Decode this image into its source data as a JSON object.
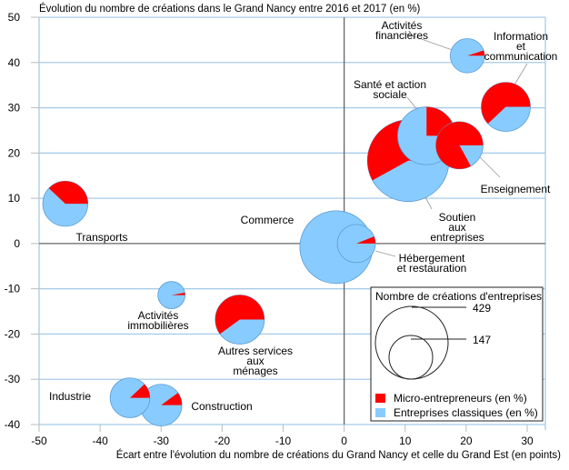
{
  "chart_data": {
    "type": "scatter",
    "subtype": "bubble-pie",
    "title": "Évolution du nombre de créations dans le Grand Nancy entre 2016 et 2017 (en %)",
    "xlabel": "Écart entre l'évolution du nombre de créations du Grand Nancy et celle du Grand Est (en points)",
    "ylabel": "",
    "xlim": [
      -50,
      33
    ],
    "ylim": [
      -40,
      50
    ],
    "x_ticks": [
      -50,
      -40,
      -30,
      -20,
      -10,
      0,
      10,
      20,
      30
    ],
    "y_ticks": [
      50,
      40,
      30,
      20,
      10,
      0,
      -10,
      -20,
      -30,
      -40
    ],
    "grid": "horizontal",
    "colors": {
      "micro": "#ff0000",
      "classic": "#88ccff",
      "grid": "#a8cce8",
      "axis_zero": "#666666"
    },
    "legend": {
      "title": "Nombre de créations d'entreprises",
      "size_values": [
        429,
        147
      ],
      "entries": [
        {
          "label": "Micro-entrepreneurs (en %)",
          "color_key": "micro"
        },
        {
          "label": "Entreprises classiques (en %)",
          "color_key": "classic"
        }
      ],
      "placement": "bottom-right"
    },
    "series": [
      {
        "name": "Activités financières",
        "label_lines": [
          "Activités",
          "financières"
        ],
        "x": 20.2,
        "y": 41.5,
        "count": 95,
        "micro_pct": 5
      },
      {
        "name": "Information et communication",
        "label_lines": [
          "Information",
          "et",
          "communication"
        ],
        "x": 26.5,
        "y": 30.2,
        "count": 195,
        "micro_pct": 62
      },
      {
        "name": "Santé et action sociale",
        "label_lines": [
          "Santé et action",
          "sociale"
        ],
        "x": 13.5,
        "y": 23.8,
        "count": 270,
        "micro_pct": 25
      },
      {
        "name": "Enseignement",
        "label_lines": [
          "Enseignement"
        ],
        "x": 18.9,
        "y": 21.7,
        "count": 180,
        "micro_pct": 83
      },
      {
        "name": "Soutien aux entreprises",
        "label_lines": [
          "Soutien",
          "aux",
          "entreprises"
        ],
        "x": 10.5,
        "y": 18.3,
        "count": 540,
        "micro_pct": 58
      },
      {
        "name": "Transports",
        "label_lines": [
          "Transports"
        ],
        "x": -45.7,
        "y": 8.8,
        "count": 165,
        "micro_pct": 38
      },
      {
        "name": "Commerce",
        "label_lines": [
          "Commerce"
        ],
        "x": -1.3,
        "y": -0.8,
        "count": 429,
        "micro_pct": 5
      },
      {
        "name": "Hébergement et restauration",
        "label_lines": [
          "Hébergement",
          "et restauration"
        ],
        "x": 2.0,
        "y": 0.0,
        "count": 118,
        "micro_pct": 6
      },
      {
        "name": "Activités immobilières",
        "label_lines": [
          "Activités",
          "immobilières"
        ],
        "x": -28.3,
        "y": -11.4,
        "count": 60,
        "micro_pct": 3
      },
      {
        "name": "Autres services aux ménages",
        "label_lines": [
          "Autres services",
          "aux",
          "ménages"
        ],
        "x": -17.1,
        "y": -16.8,
        "count": 195,
        "micro_pct": 60
      },
      {
        "name": "Industrie",
        "label_lines": [
          "Industrie"
        ],
        "x": -35.1,
        "y": -34.1,
        "count": 128,
        "micro_pct": 12
      },
      {
        "name": "Construction",
        "label_lines": [
          "Construction"
        ],
        "x": -30.0,
        "y": -35.7,
        "count": 140,
        "micro_pct": 10
      }
    ]
  }
}
